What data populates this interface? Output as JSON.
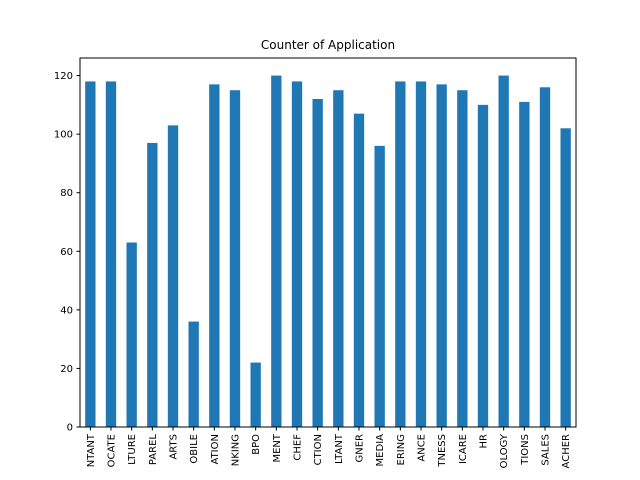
{
  "chart_data": {
    "type": "bar",
    "title": "Counter of Application",
    "xlabel": "",
    "ylabel": "",
    "ylim": [
      0,
      126
    ],
    "yticks": [
      0,
      20,
      40,
      60,
      80,
      100,
      120
    ],
    "grid": false,
    "bar_color": "#1f77b4",
    "categories": [
      "NTANT",
      "OCATE",
      "LTURE",
      "PAREL",
      "ARTS",
      "OBILE",
      "ATION",
      "NKING",
      "BPO",
      "MENT",
      "CHEF",
      "CTION",
      "LTANT",
      "GNER",
      "MEDIA",
      "ERING",
      "ANCE",
      "TNESS",
      "ICARE",
      "HR",
      "OLOGY",
      "TIONS",
      "SALES",
      "ACHER"
    ],
    "values": [
      118,
      118,
      63,
      97,
      103,
      36,
      117,
      115,
      22,
      120,
      118,
      112,
      115,
      107,
      96,
      118,
      118,
      117,
      115,
      110,
      120,
      111,
      116,
      102
    ]
  }
}
